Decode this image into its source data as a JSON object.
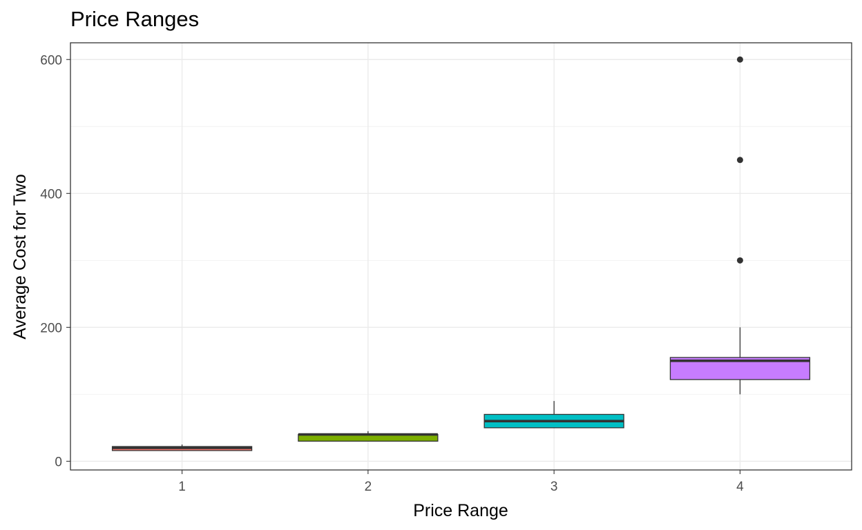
{
  "chart_data": {
    "type": "boxplot",
    "title": "Price Ranges",
    "xlabel": "Price Range",
    "ylabel": "Average Cost for Two",
    "categories": [
      "1",
      "2",
      "3",
      "4"
    ],
    "y_ticks": [
      0,
      200,
      400,
      600
    ],
    "ylim": [
      -13,
      625
    ],
    "grid": true,
    "legend": "none",
    "boxes": [
      {
        "category": "1",
        "min": 16,
        "q1": 16,
        "median": 20,
        "q3": 22,
        "max": 25,
        "outliers": [],
        "color": "#F8766D"
      },
      {
        "category": "2",
        "min": 30,
        "q1": 30,
        "median": 40,
        "q3": 40,
        "max": 45,
        "outliers": [],
        "color": "#7CAE00"
      },
      {
        "category": "3",
        "min": 50,
        "q1": 50,
        "median": 60,
        "q3": 70,
        "max": 90,
        "outliers": [],
        "color": "#00BFC4"
      },
      {
        "category": "4",
        "min": 100,
        "q1": 122,
        "median": 150,
        "q3": 155,
        "max": 200,
        "outliers": [
          300,
          450,
          600
        ],
        "color": "#C77CFF"
      }
    ]
  }
}
